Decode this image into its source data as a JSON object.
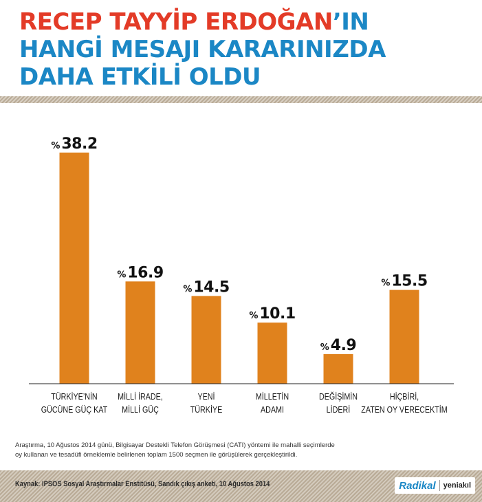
{
  "title": {
    "line1_highlight": "RECEP TAYYİP ERDOĞAN",
    "line1_suffix": "’IN",
    "line2": "HANGİ MESAJI KARARINIZDA",
    "line3": "DAHA ETKİLİ OLDU"
  },
  "colors": {
    "bar": "#e0821d",
    "title_red": "#e33b27",
    "title_blue": "#1b87c5"
  },
  "chart_data": {
    "type": "bar",
    "value_prefix": "%",
    "categories": [
      [
        "TÜRKİYE’NİN",
        "GÜCÜNE GÜÇ KAT"
      ],
      [
        "MİLLİ İRADE,",
        "MİLLİ GÜÇ"
      ],
      [
        "YENİ",
        "TÜRKİYE"
      ],
      [
        "MİLLETİN",
        "ADAMI"
      ],
      [
        "DEĞİŞİMİN",
        "LİDERİ"
      ],
      [
        "HİÇBİRİ,",
        "ZATEN OY VERECEKTİM"
      ]
    ],
    "values": [
      38.2,
      16.9,
      14.5,
      10.1,
      4.9,
      15.5
    ],
    "value_labels": [
      "38.2",
      "16.9",
      "14.5",
      "10.1",
      "4.9",
      "15.5"
    ],
    "ylim": [
      0,
      40
    ],
    "grid": false
  },
  "footnote": [
    "Araştırma, 10 Ağustos 2014 günü, Bilgisayar Destekli Telefon Görüşmesi (CATI) yöntemi ile mahalli seçimlerde",
    "oy kullanan ve tesadüfi örneklemle belirlenen toplam 1500 seçmen ile görüşülerek gerçekleştirildi."
  ],
  "source": "Kaynak: IPSOS Sosyal Araştırmalar Enstitüsü, Sandık çıkış anketi, 10 Ağustos 2014",
  "logos": {
    "radikal": "Radikal",
    "yeniakil": "yeniakıl"
  }
}
